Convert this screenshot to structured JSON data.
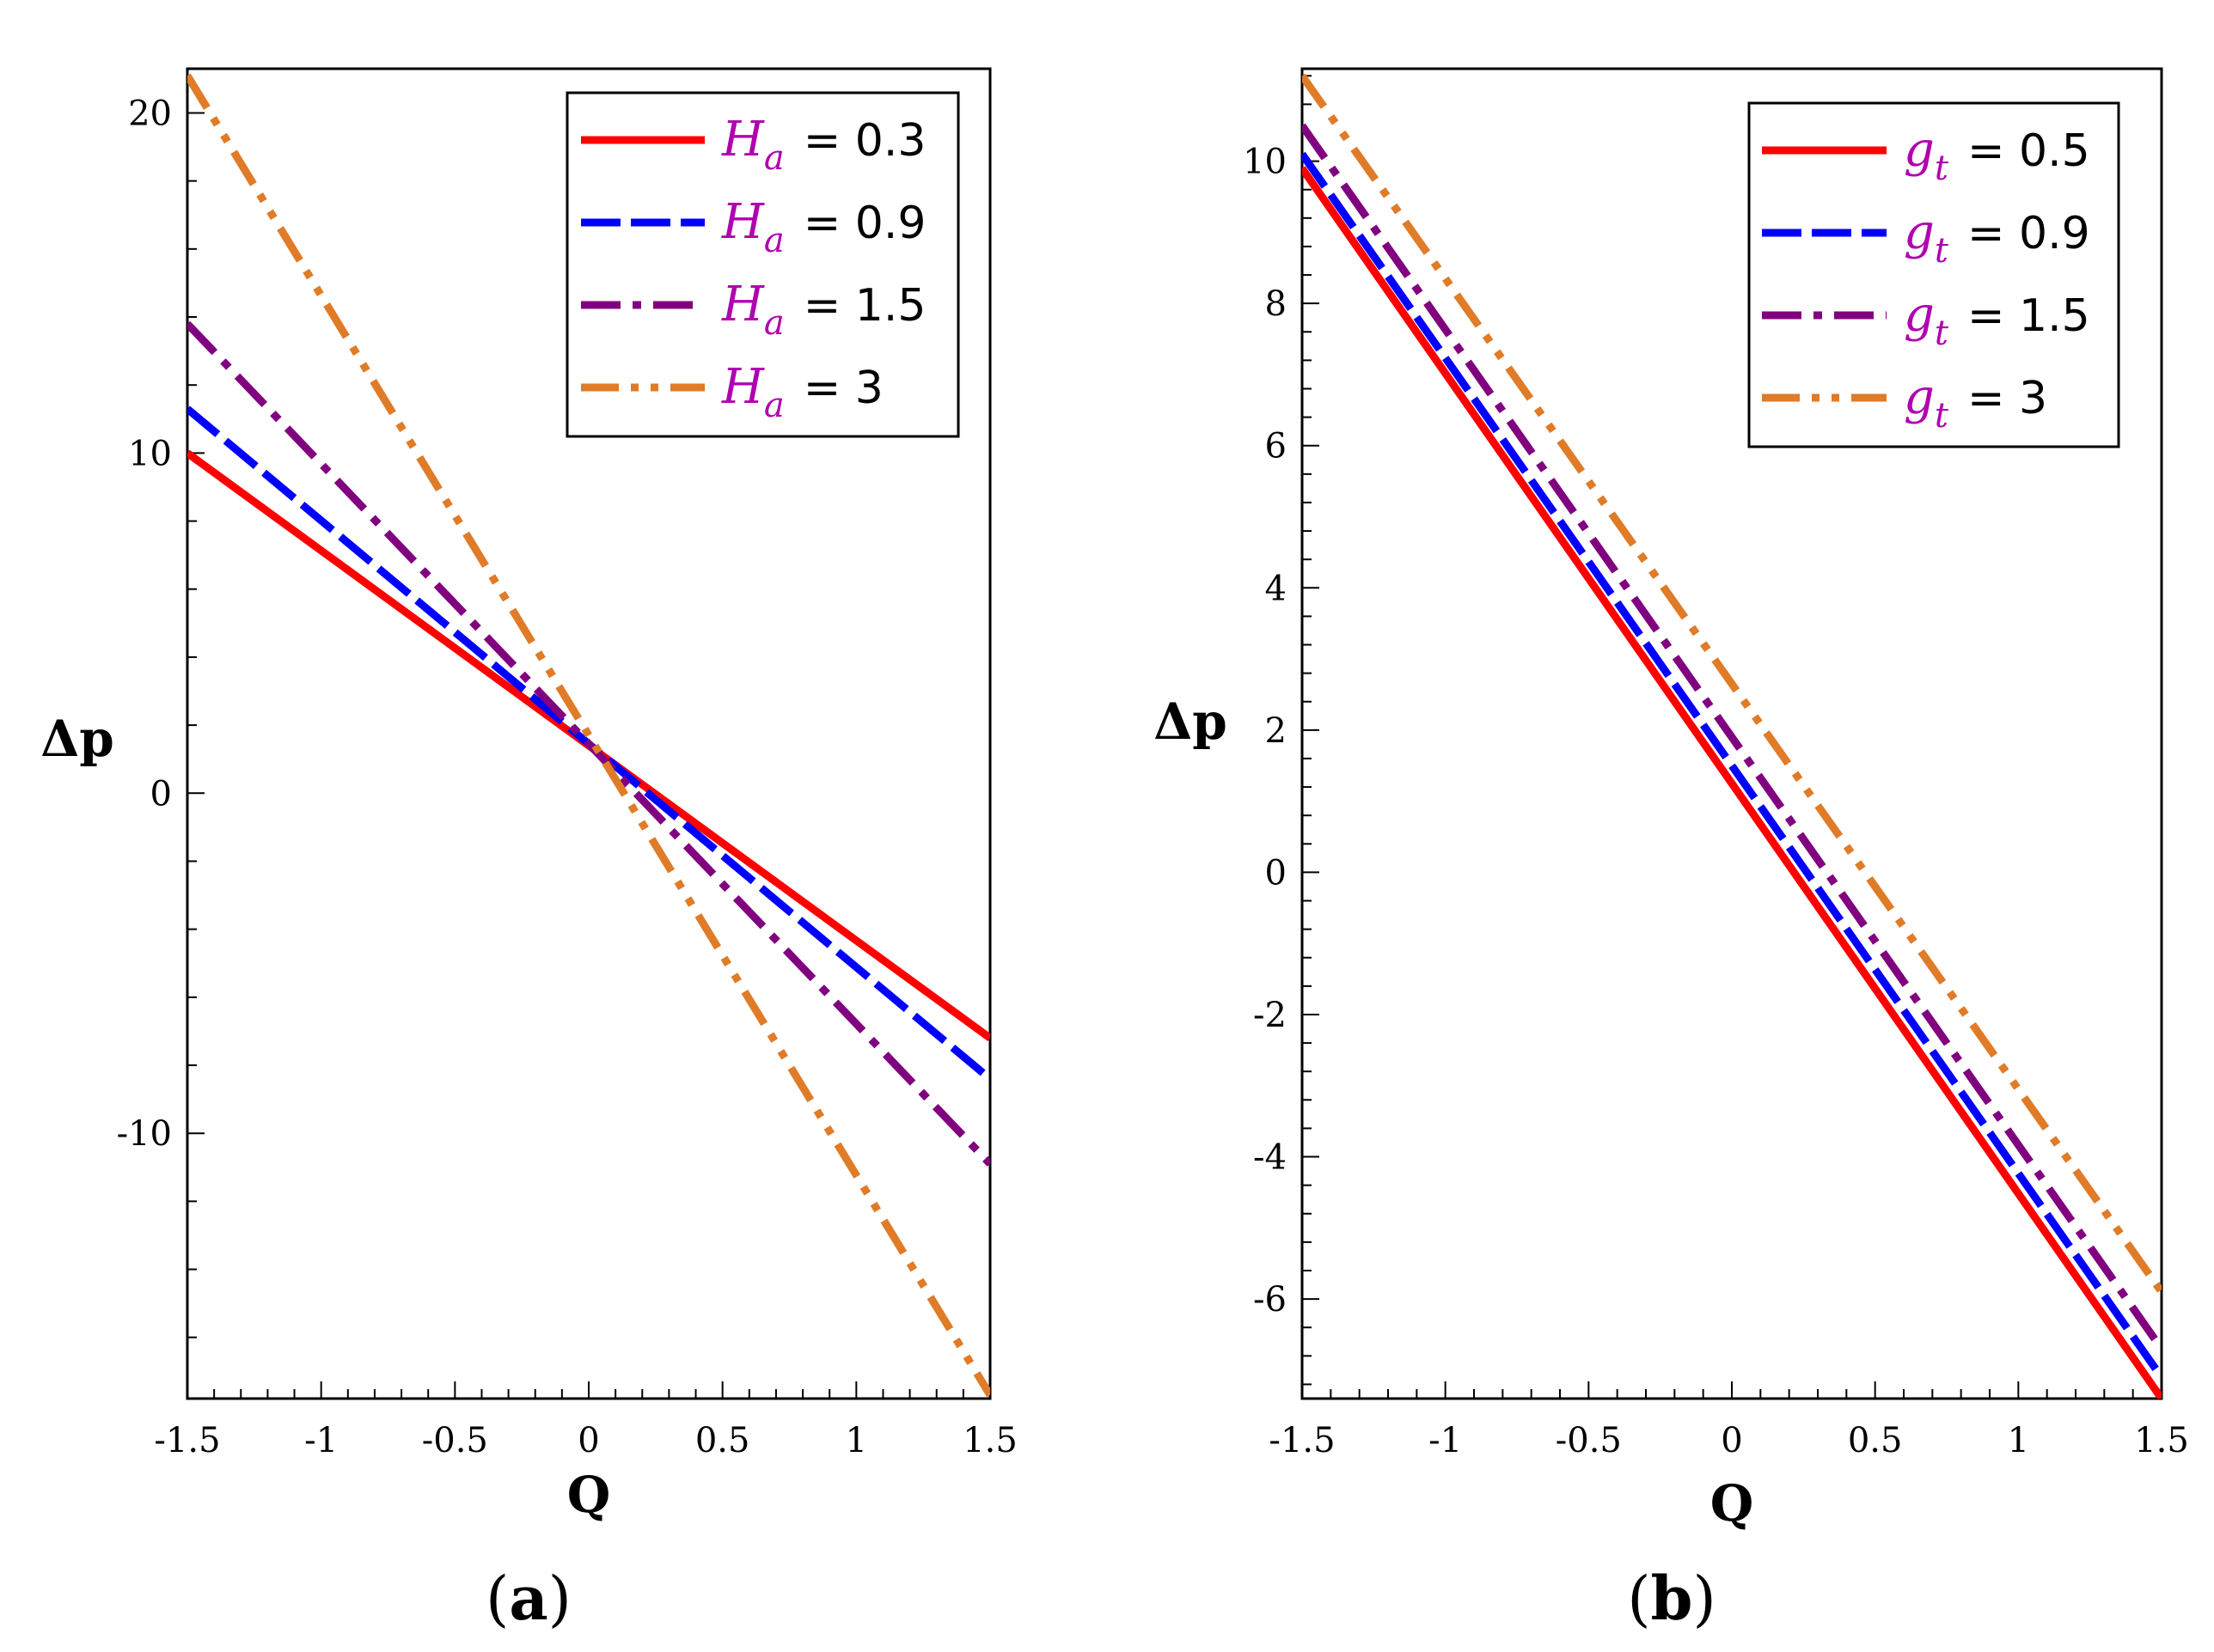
{
  "chart_data": [
    {
      "panel": "a",
      "type": "line",
      "title": "",
      "xlabel": "Q",
      "ylabel": "Δp",
      "xlim": [
        -1.5,
        1.5
      ],
      "ylim": [
        -17.8,
        21.3
      ],
      "x_ticks": [
        -1.5,
        -1,
        -0.5,
        0,
        0.5,
        1,
        1.5
      ],
      "x_tick_labels": [
        "-1.5",
        "-1",
        "-0.5",
        "0",
        "0.5",
        "1",
        "1.5"
      ],
      "y_ticks": [
        -10,
        0,
        10,
        20
      ],
      "y_tick_labels": [
        "-10",
        "0",
        "10",
        "20"
      ],
      "legend_position": "top-right",
      "legend_symbol": "H",
      "legend_subscript": "a",
      "series": [
        {
          "name": "0.3",
          "color": "#ff0000",
          "dash": "solid",
          "x": [
            -1.5,
            1.5
          ],
          "values": [
            10.0,
            -7.2
          ]
        },
        {
          "name": "0.9",
          "color": "#0000ff",
          "dash": "long-dash",
          "x": [
            -1.5,
            1.5
          ],
          "values": [
            11.3,
            -8.4
          ]
        },
        {
          "name": "1.5",
          "color": "#800080",
          "dash": "dash-dot",
          "x": [
            -1.5,
            1.5
          ],
          "values": [
            13.8,
            -10.9
          ]
        },
        {
          "name": "3",
          "color": "#e07b28",
          "dash": "dash-dot-dot",
          "x": [
            -1.5,
            1.5
          ],
          "values": [
            21.1,
            -17.7
          ]
        }
      ],
      "caption": {
        "open": "(",
        "letter": "a",
        "close": ")"
      }
    },
    {
      "panel": "b",
      "type": "line",
      "title": "",
      "xlabel": "Q",
      "ylabel": "Δp",
      "xlim": [
        -1.5,
        1.5
      ],
      "ylim": [
        -7.4,
        11.3
      ],
      "x_ticks": [
        -1.5,
        -1,
        -0.5,
        0,
        0.5,
        1,
        1.5
      ],
      "x_tick_labels": [
        "-1.5",
        "-1",
        "-0.5",
        "0",
        "0.5",
        "1",
        "1.5"
      ],
      "y_ticks": [
        -6,
        -4,
        -2,
        0,
        2,
        4,
        6,
        8,
        10
      ],
      "y_tick_labels": [
        "-6",
        "-4",
        "-2",
        "0",
        "2",
        "4",
        "6",
        "8",
        "10"
      ],
      "legend_position": "top-right",
      "legend_symbol": "g",
      "legend_subscript": "t",
      "series": [
        {
          "name": "0.5",
          "color": "#ff0000",
          "dash": "solid",
          "x": [
            -1.5,
            1.5
          ],
          "values": [
            9.9,
            -7.4
          ]
        },
        {
          "name": "0.9",
          "color": "#0000ff",
          "dash": "long-dash",
          "x": [
            -1.5,
            1.5
          ],
          "values": [
            10.1,
            -7.1
          ]
        },
        {
          "name": "1.5",
          "color": "#800080",
          "dash": "dash-dot",
          "x": [
            -1.5,
            1.5
          ],
          "values": [
            10.5,
            -6.7
          ]
        },
        {
          "name": "3",
          "color": "#e07b28",
          "dash": "dash-dot-dot",
          "x": [
            -1.5,
            1.5
          ],
          "values": [
            11.2,
            -5.9
          ]
        }
      ],
      "caption": {
        "open": "(",
        "letter": "b",
        "close": ")"
      }
    }
  ]
}
